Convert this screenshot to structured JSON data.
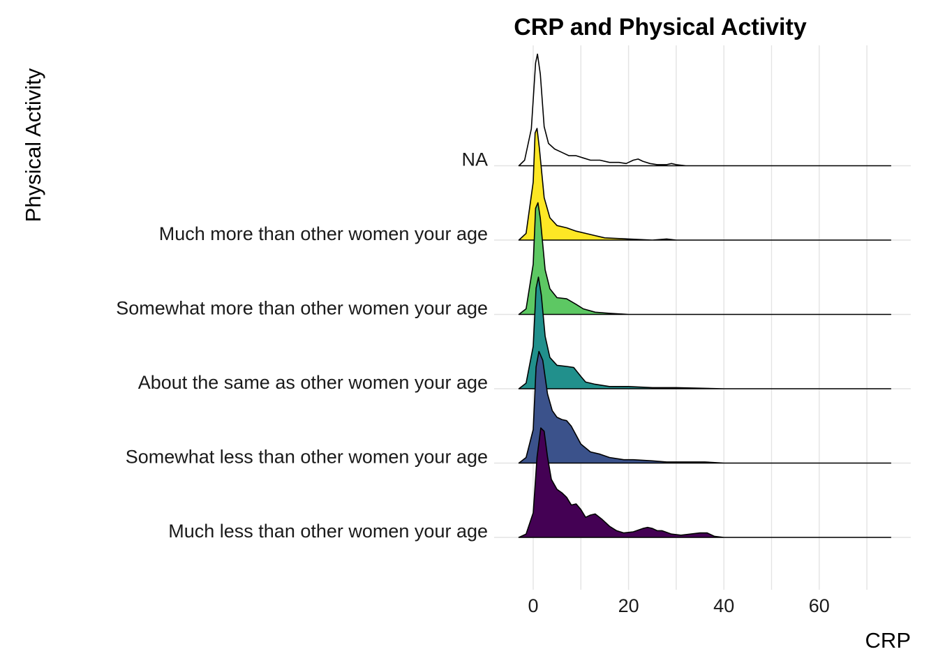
{
  "chart_data": {
    "type": "ridgeline",
    "title": "CRP and Physical Activity",
    "xlabel": "CRP",
    "ylabel": "Physical Activity",
    "xlim": [
      -3,
      75
    ],
    "x_ticks": [
      0,
      20,
      40,
      60
    ],
    "x_tick_labels": [
      "0",
      "20",
      "40",
      "60"
    ],
    "grid": "vertical major and minor lines",
    "categories": [
      "Much less than other women your age",
      "Somewhat less than other women your age",
      "About the same as other women your age",
      "Somewhat more than other women your age",
      "Much more than other women your age",
      "NA"
    ],
    "series": [
      {
        "color": "#440154",
        "density": [
          [
            -3,
            0
          ],
          [
            -1.5,
            0.03
          ],
          [
            0,
            0.22
          ],
          [
            0.8,
            0.72
          ],
          [
            1.6,
            0.98
          ],
          [
            2.3,
            0.95
          ],
          [
            3,
            0.72
          ],
          [
            3.8,
            0.52
          ],
          [
            5,
            0.43
          ],
          [
            6,
            0.4
          ],
          [
            7,
            0.36
          ],
          [
            8,
            0.29
          ],
          [
            9,
            0.3
          ],
          [
            10,
            0.25
          ],
          [
            11,
            0.18
          ],
          [
            12,
            0.2
          ],
          [
            13,
            0.21
          ],
          [
            14.5,
            0.16
          ],
          [
            16,
            0.1
          ],
          [
            17.5,
            0.06
          ],
          [
            19,
            0.04
          ],
          [
            21,
            0.05
          ],
          [
            23,
            0.08
          ],
          [
            24,
            0.09
          ],
          [
            25,
            0.08
          ],
          [
            26,
            0.06
          ],
          [
            27,
            0.06
          ],
          [
            29,
            0.03
          ],
          [
            31,
            0.02
          ],
          [
            33,
            0.03
          ],
          [
            35,
            0.04
          ],
          [
            36.5,
            0.04
          ],
          [
            38,
            0.01
          ],
          [
            40,
            0
          ],
          [
            75,
            0
          ]
        ]
      },
      {
        "color": "#3B528B",
        "density": [
          [
            -3,
            0
          ],
          [
            -1.5,
            0.05
          ],
          [
            0,
            0.3
          ],
          [
            0.6,
            0.86
          ],
          [
            1.2,
            1
          ],
          [
            2,
            0.92
          ],
          [
            3,
            0.62
          ],
          [
            4,
            0.47
          ],
          [
            5,
            0.41
          ],
          [
            6,
            0.39
          ],
          [
            7,
            0.38
          ],
          [
            8,
            0.33
          ],
          [
            9,
            0.25
          ],
          [
            10,
            0.17
          ],
          [
            12,
            0.1
          ],
          [
            14,
            0.08
          ],
          [
            16,
            0.05
          ],
          [
            19,
            0.03
          ],
          [
            21,
            0.03
          ],
          [
            25,
            0.02
          ],
          [
            28,
            0.01
          ],
          [
            36,
            0.01
          ],
          [
            40,
            0
          ],
          [
            75,
            0
          ]
        ]
      },
      {
        "color": "#21908C",
        "density": [
          [
            -3,
            0
          ],
          [
            -1.5,
            0.05
          ],
          [
            0,
            0.38
          ],
          [
            0.6,
            0.9
          ],
          [
            1.1,
            1
          ],
          [
            1.7,
            0.84
          ],
          [
            2.5,
            0.47
          ],
          [
            3.5,
            0.28
          ],
          [
            5,
            0.21
          ],
          [
            7,
            0.2
          ],
          [
            8.5,
            0.19
          ],
          [
            10,
            0.11
          ],
          [
            11,
            0.06
          ],
          [
            13,
            0.04
          ],
          [
            16,
            0.02
          ],
          [
            20,
            0.02
          ],
          [
            25,
            0.01
          ],
          [
            30,
            0.01
          ],
          [
            40,
            0
          ],
          [
            75,
            0
          ]
        ]
      },
      {
        "color": "#5DC863",
        "density": [
          [
            -3,
            0
          ],
          [
            -1.5,
            0.05
          ],
          [
            0,
            0.45
          ],
          [
            0.5,
            0.95
          ],
          [
            1,
            1
          ],
          [
            1.5,
            0.86
          ],
          [
            2.5,
            0.4
          ],
          [
            3.5,
            0.23
          ],
          [
            5,
            0.15
          ],
          [
            7,
            0.14
          ],
          [
            9,
            0.09
          ],
          [
            10.5,
            0.05
          ],
          [
            13,
            0.02
          ],
          [
            16,
            0.01
          ],
          [
            20,
            0
          ],
          [
            75,
            0
          ]
        ]
      },
      {
        "color": "#FDE725",
        "density": [
          [
            -3,
            0
          ],
          [
            -1.5,
            0.06
          ],
          [
            0,
            0.52
          ],
          [
            0.4,
            0.96
          ],
          [
            0.8,
            1
          ],
          [
            1.3,
            0.82
          ],
          [
            2.3,
            0.38
          ],
          [
            3.5,
            0.2
          ],
          [
            5,
            0.13
          ],
          [
            7,
            0.11
          ],
          [
            9,
            0.08
          ],
          [
            11,
            0.06
          ],
          [
            13,
            0.04
          ],
          [
            15,
            0.02
          ],
          [
            20,
            0.01
          ],
          [
            25,
            0
          ],
          [
            28,
            0.01
          ],
          [
            30,
            0
          ],
          [
            75,
            0
          ]
        ]
      },
      {
        "color": "#FFFFFF",
        "density": [
          [
            -3,
            0
          ],
          [
            -1.8,
            0.05
          ],
          [
            -0.4,
            0.33
          ],
          [
            0.5,
            0.92
          ],
          [
            0.9,
            1
          ],
          [
            1.5,
            0.82
          ],
          [
            2.3,
            0.35
          ],
          [
            3.2,
            0.2
          ],
          [
            4.5,
            0.15
          ],
          [
            6,
            0.12
          ],
          [
            7.5,
            0.09
          ],
          [
            9,
            0.09
          ],
          [
            10.5,
            0.07
          ],
          [
            12,
            0.05
          ],
          [
            14,
            0.05
          ],
          [
            16,
            0.03
          ],
          [
            18,
            0.03
          ],
          [
            19.5,
            0.02
          ],
          [
            21,
            0.05
          ],
          [
            22,
            0.06
          ],
          [
            23,
            0.04
          ],
          [
            24.5,
            0.02
          ],
          [
            26,
            0.01
          ],
          [
            28,
            0.01
          ],
          [
            29,
            0.02
          ],
          [
            30,
            0.01
          ],
          [
            32,
            0
          ],
          [
            75,
            0
          ]
        ]
      }
    ]
  }
}
